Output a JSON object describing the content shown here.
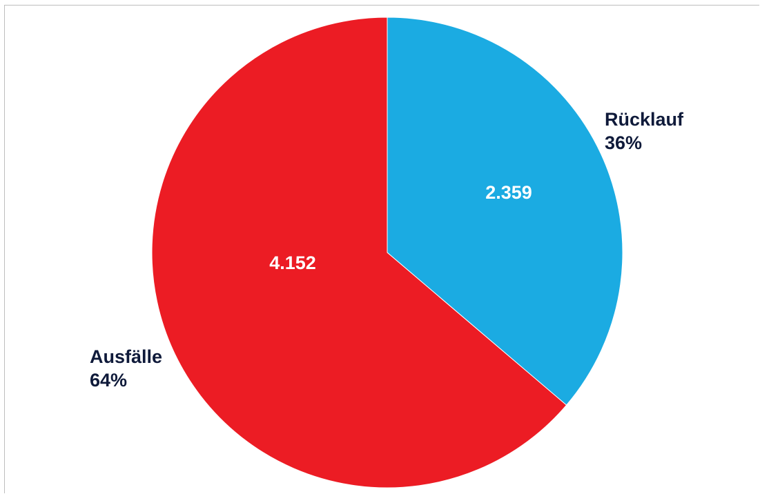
{
  "chart_data": {
    "type": "pie",
    "slices": [
      {
        "label": "Rücklauf",
        "value": 2359,
        "value_label": "2.359",
        "percent_label": "36%",
        "color": "#1BABE2"
      },
      {
        "label": "Ausfälle",
        "value": 4152,
        "value_label": "4.152",
        "percent_label": "64%",
        "color": "#EC1C24"
      }
    ],
    "start_angle": "12 o'clock",
    "direction": "clockwise",
    "legend": "none",
    "category_label_color": "#0f1a3a",
    "value_label_color": "#ffffff"
  }
}
